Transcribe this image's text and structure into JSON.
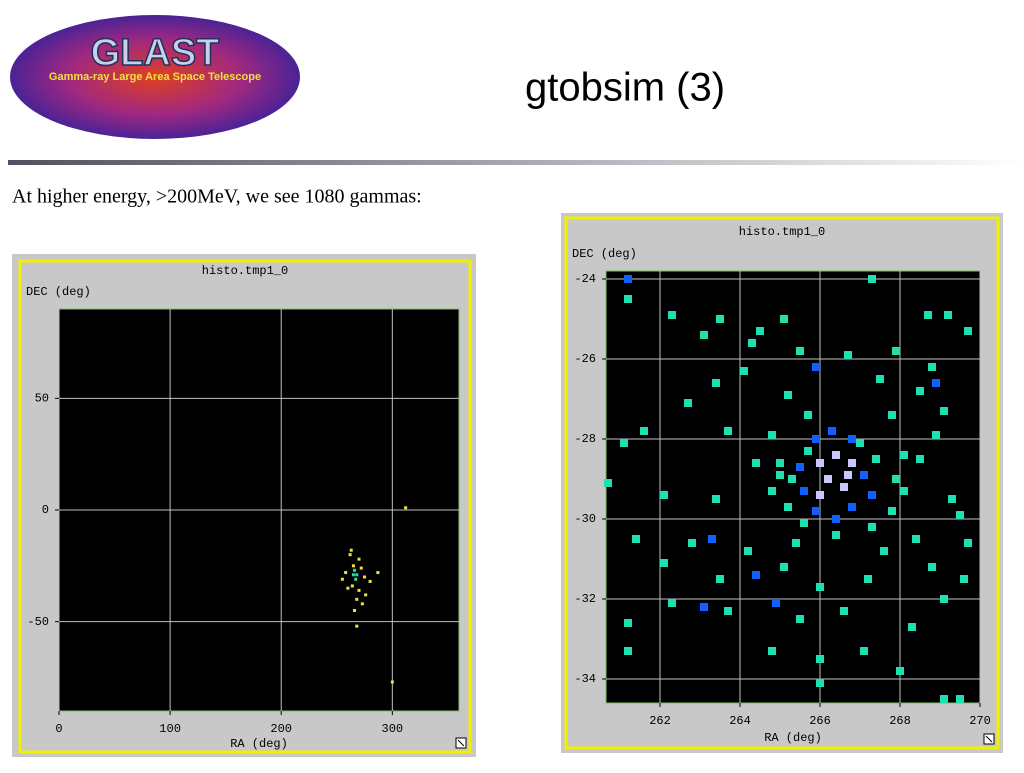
{
  "header": {
    "title": "gtobsim (3)"
  },
  "logo": {
    "name": "GLAST",
    "subtitle": "Gamma-ray Large Area Space Telescope"
  },
  "body": {
    "text": "At higher energy, >200MeV, we see 1080 gammas:"
  },
  "chart_data": [
    {
      "type": "scatter",
      "title": "histo.tmp1_0",
      "x_label": "RA (deg)",
      "y_label": "DEC (deg)",
      "xlim": [
        0,
        360
      ],
      "ylim": [
        -90,
        90
      ],
      "xticks": [
        0,
        100,
        200,
        300
      ],
      "yticks": [
        -50,
        0,
        50
      ],
      "grid": true,
      "series": [
        {
          "color": "#f0e040",
          "x": [
            262,
            270,
            265,
            272,
            258,
            275,
            264,
            270,
            268,
            276,
            260,
            280,
            266,
            287,
            268,
            300,
            312,
            263,
            273,
            255
          ],
          "y": [
            -20,
            -22,
            -25,
            -26,
            -28,
            -30,
            -34,
            -36,
            -40,
            -38,
            -35,
            -32,
            -45,
            -28,
            -52,
            -77,
            1,
            -18,
            -42,
            -31
          ]
        },
        {
          "color": "#20e0b0",
          "x": [
            266,
            268,
            267,
            265
          ],
          "y": [
            -27,
            -29,
            -31,
            -29
          ]
        }
      ]
    },
    {
      "type": "scatter",
      "title": "histo.tmp1_0",
      "x_label": "RA (deg)",
      "y_label": "DEC (deg)",
      "xlim": [
        260.65,
        270
      ],
      "ylim": [
        -34.6,
        -23.8
      ],
      "xticks": [
        262,
        264,
        266,
        268,
        270
      ],
      "yticks": [
        -34,
        -32,
        -30,
        -28,
        -26,
        -24
      ],
      "grid": true,
      "series": [
        {
          "color": "#20e0b0",
          "x": [
            261.2,
            262.3,
            263.5,
            264.5,
            265.1,
            267.3,
            268.7,
            269.2,
            269.7,
            263.1,
            264.3,
            265.5,
            266.7,
            267.9,
            268.8,
            262.7,
            263.4,
            264.1,
            265.2,
            267.5,
            268.5,
            269.1,
            261.1,
            261.6,
            263.7,
            264.8,
            265.7,
            267.8,
            268.9,
            264.4,
            265.0,
            268.5,
            268.1,
            260.7,
            262.1,
            263.4,
            265.2,
            267.8,
            269.3,
            269.5,
            261.4,
            262.8,
            264.2,
            265.4,
            267.6,
            268.4,
            269.7,
            262.1,
            263.5,
            265.1,
            266.0,
            267.2,
            268.8,
            269.6,
            261.2,
            262.3,
            263.7,
            265.5,
            266.6,
            268.3,
            269.1,
            261.2,
            264.8,
            266.0,
            267.1,
            268.0,
            266.0,
            269.5,
            269.1,
            265.0,
            265.3,
            265.7,
            267.0,
            267.4,
            267.9,
            265.6,
            267.3,
            266.4,
            268.1,
            264.8
          ],
          "y": [
            -24.5,
            -24.9,
            -25.0,
            -25.3,
            -25.0,
            -24.0,
            -24.9,
            -24.9,
            -25.3,
            -25.4,
            -25.6,
            -25.8,
            -25.9,
            -25.8,
            -26.2,
            -27.1,
            -26.6,
            -26.3,
            -26.9,
            -26.5,
            -26.8,
            -27.3,
            -28.1,
            -27.8,
            -27.8,
            -27.9,
            -27.4,
            -27.4,
            -27.9,
            -28.6,
            -28.9,
            -28.5,
            -29.3,
            -29.1,
            -29.4,
            -29.5,
            -29.7,
            -29.8,
            -29.5,
            -29.9,
            -30.5,
            -30.6,
            -30.8,
            -30.6,
            -30.8,
            -30.5,
            -30.6,
            -31.1,
            -31.5,
            -31.2,
            -31.7,
            -31.5,
            -31.2,
            -31.5,
            -32.6,
            -32.1,
            -32.3,
            -32.5,
            -32.3,
            -32.7,
            -32.0,
            -33.3,
            -33.3,
            -33.5,
            -33.3,
            -33.8,
            -34.1,
            -34.5,
            -34.5,
            -28.6,
            -29.0,
            -28.3,
            -28.1,
            -28.5,
            -29.0,
            -30.1,
            -30.2,
            -30.4,
            -28.4,
            -29.3
          ]
        },
        {
          "color": "#1060ff",
          "x": [
            265.9,
            266.3,
            266.8,
            265.5,
            267.1,
            265.6,
            267.3,
            265.9,
            266.8,
            266.4,
            261.2,
            265.9,
            268.9,
            263.3,
            264.4,
            263.1,
            264.9
          ],
          "y": [
            -28.0,
            -27.8,
            -28.0,
            -28.7,
            -28.9,
            -29.3,
            -29.4,
            -29.8,
            -29.7,
            -30.0,
            -24.0,
            -26.2,
            -26.6,
            -30.5,
            -31.4,
            -32.2,
            -32.1
          ]
        },
        {
          "color": "#c8c8ff",
          "x": [
            266.0,
            266.4,
            266.8,
            266.2,
            266.6,
            266.0,
            266.7
          ],
          "y": [
            -28.6,
            -28.4,
            -28.6,
            -29.0,
            -29.2,
            -29.4,
            -28.9
          ]
        }
      ]
    }
  ]
}
